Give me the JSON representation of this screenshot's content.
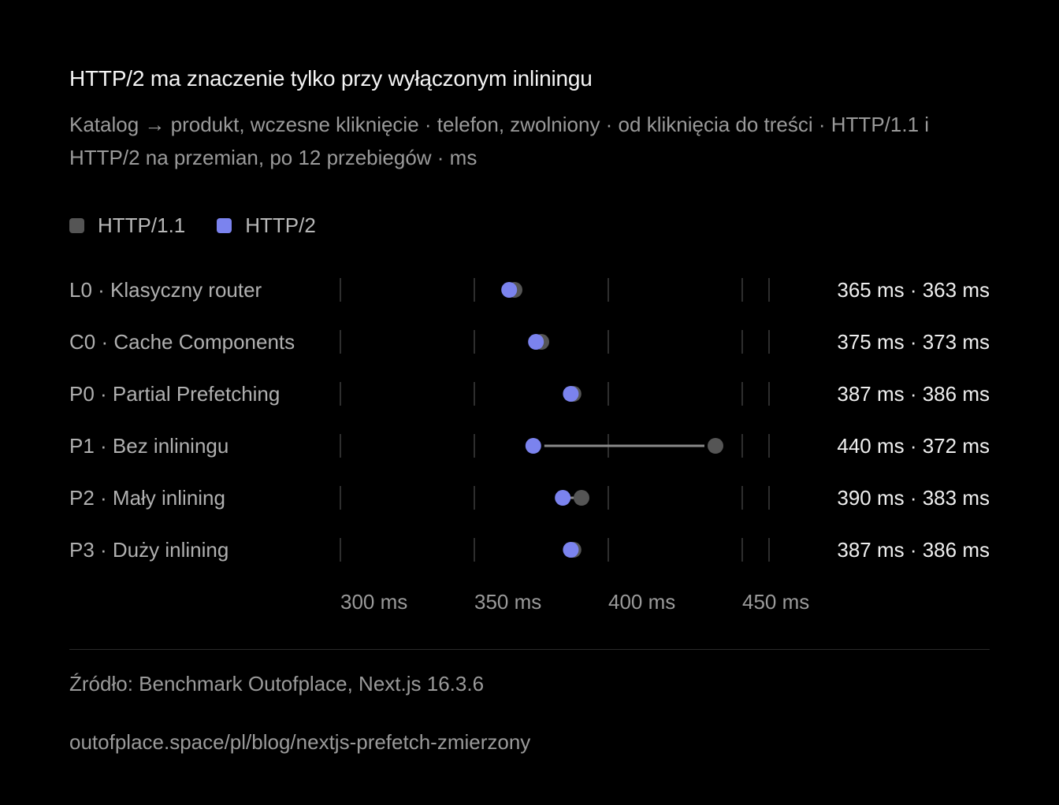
{
  "chart_data": {
    "type": "dot-comparison",
    "title": "HTTP/2 ma znaczenie tylko przy wyłączonym inliningu",
    "subtitle": "Katalog → produkt, wczesne kliknięcie · telefon, zwolniony · od kliknięcia do treści · HTTP/1.1 i HTTP/2 na przemian, po 12 przebiegów · ms",
    "series": [
      {
        "name": "HTTP/1.1",
        "color": "#555555"
      },
      {
        "name": "HTTP/2",
        "color": "#7b83ee"
      }
    ],
    "rows": [
      {
        "label": "L0 · Klasyczny router",
        "http11": 365,
        "http2": 363,
        "value_text": "365 ms · 363 ms"
      },
      {
        "label": "C0 · Cache Components",
        "http11": 375,
        "http2": 373,
        "value_text": "375 ms · 373 ms"
      },
      {
        "label": "P0 · Partial Prefetching",
        "http11": 387,
        "http2": 386,
        "value_text": "387 ms · 386 ms"
      },
      {
        "label": "P1 · Bez inliningu",
        "http11": 440,
        "http2": 372,
        "value_text": "440 ms · 372 ms"
      },
      {
        "label": "P2 · Mały inlining",
        "http11": 390,
        "http2": 383,
        "value_text": "390 ms · 383 ms"
      },
      {
        "label": "P3 · Duży inlining",
        "http11": 387,
        "http2": 386,
        "value_text": "387 ms · 386 ms"
      }
    ],
    "xticks": [
      {
        "value": 300,
        "label": "300 ms"
      },
      {
        "value": 350,
        "label": "350 ms"
      },
      {
        "value": 400,
        "label": "400 ms"
      },
      {
        "value": 450,
        "label": "450 ms"
      }
    ],
    "xlim": [
      300,
      460
    ],
    "connector_color": "#8a8a8a"
  },
  "footer": {
    "source": "Źródło: Benchmark Outofplace, Next.js 16.3.6",
    "url": "outofplace.space/pl/blog/nextjs-prefetch-zmierzony"
  }
}
